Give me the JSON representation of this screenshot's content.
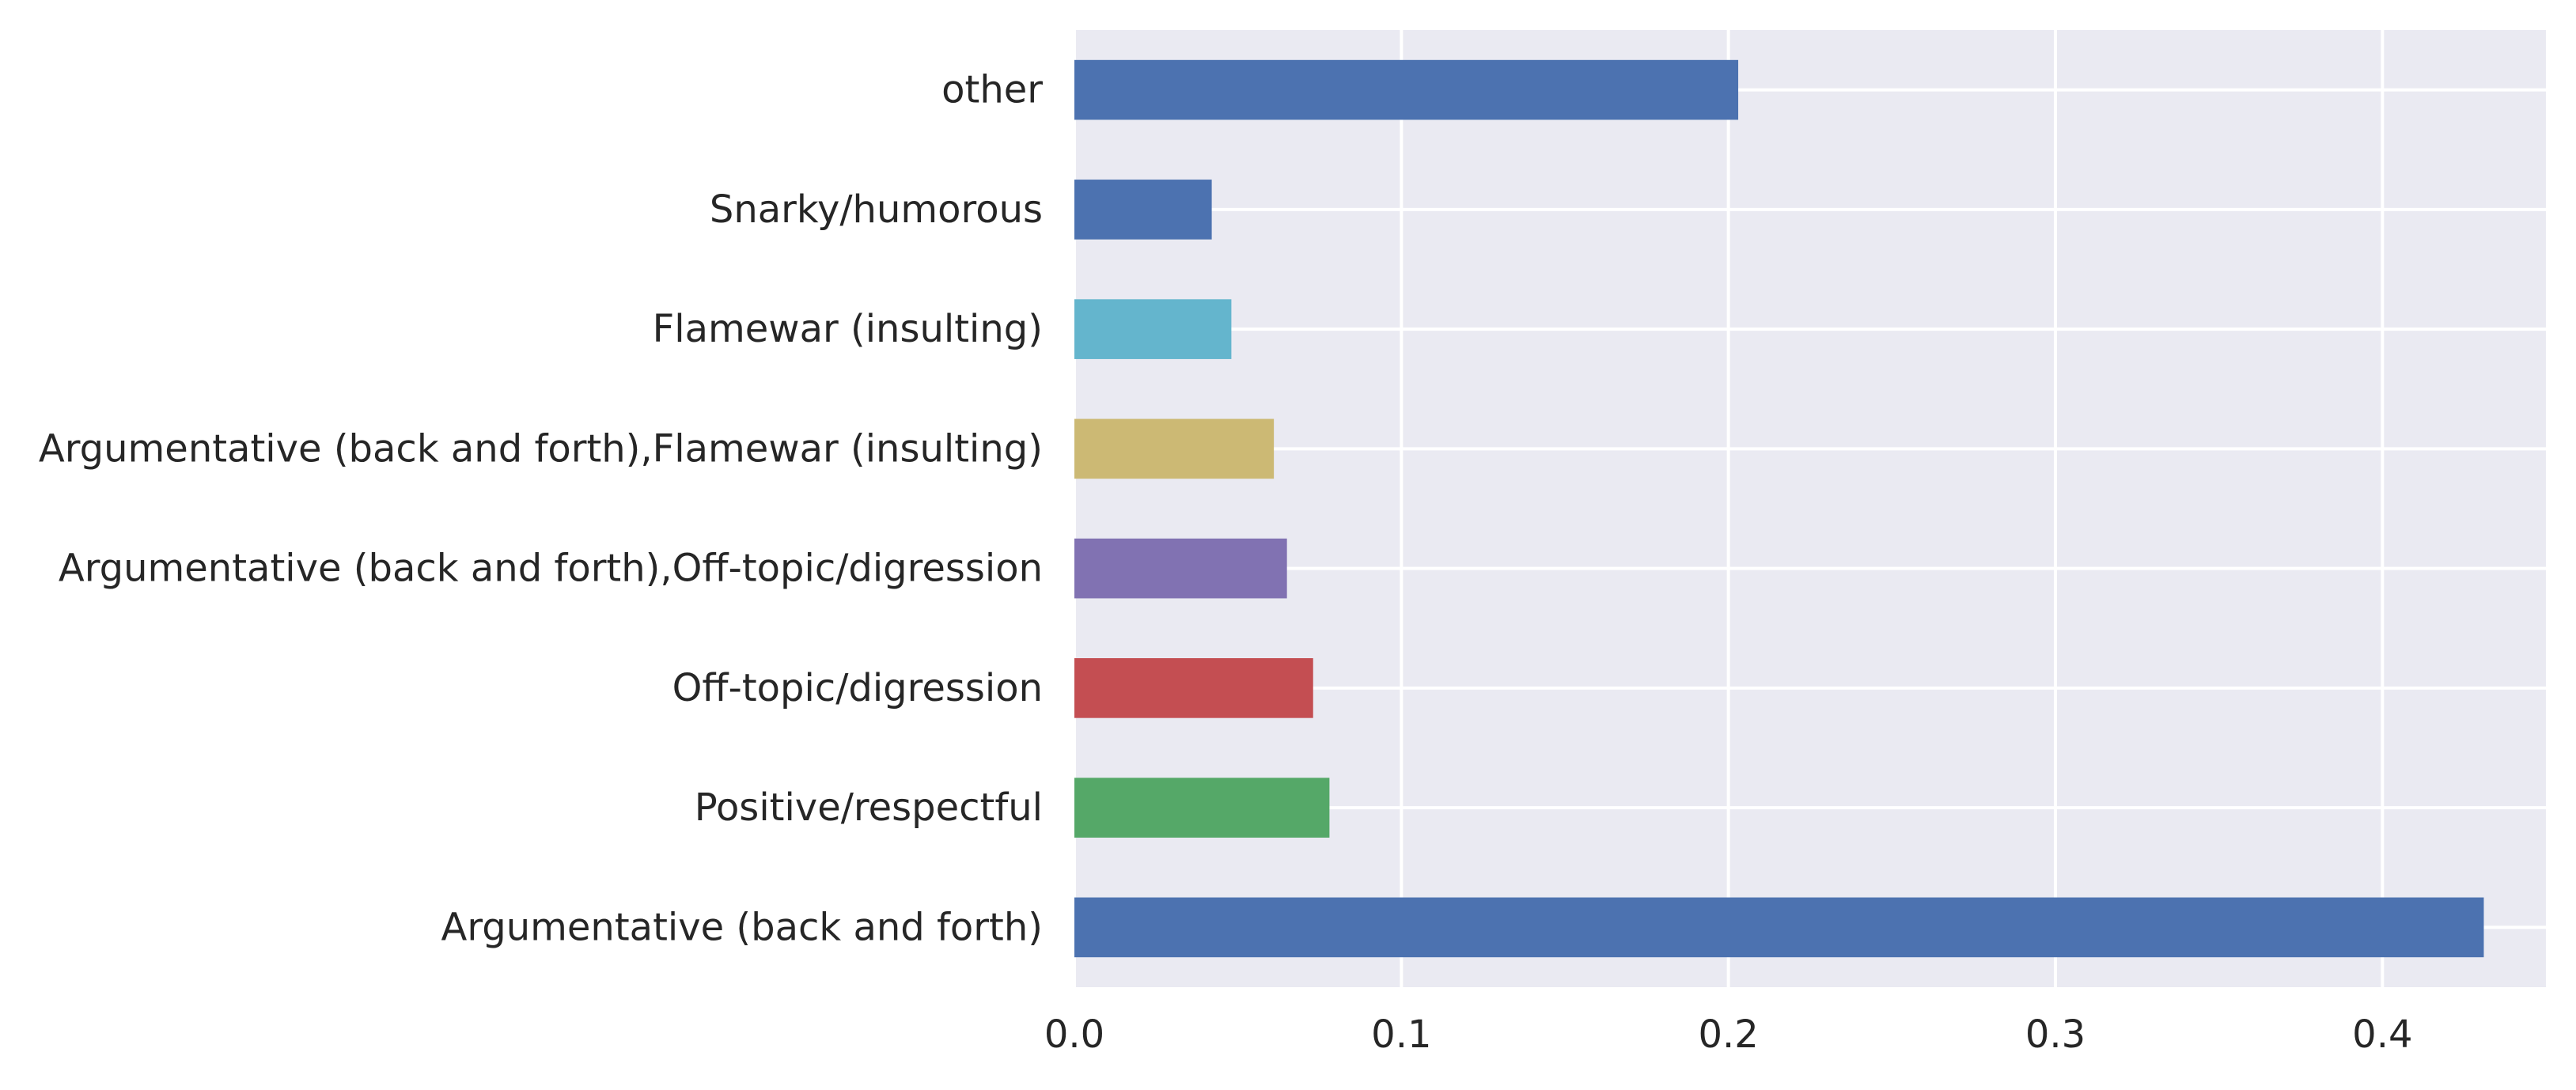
{
  "chart_data": {
    "type": "bar",
    "orientation": "horizontal",
    "title": "",
    "xlabel": "",
    "ylabel": "",
    "categories": [
      "Argumentative (back and forth)",
      "Positive/respectful",
      "Off-topic/digression",
      "Argumentative (back and forth),Off-topic/digression",
      "Argumentative (back and forth),Flamewar (insulting)",
      "Flamewar (insulting)",
      "Snarky/humorous",
      "other"
    ],
    "values": [
      0.431,
      0.078,
      0.073,
      0.065,
      0.061,
      0.048,
      0.042,
      0.203
    ],
    "colors": [
      "#4c72b0",
      "#55a868",
      "#c44e52",
      "#8172b2",
      "#ccb974",
      "#64b5cd",
      "#4c72b0",
      "#4c72b0"
    ],
    "xlim": [
      0,
      0.45
    ],
    "xticks": [
      0.0,
      0.1,
      0.2,
      0.3,
      0.4
    ],
    "xtick_labels": [
      "0.0",
      "0.1",
      "0.2",
      "0.3",
      "0.4"
    ],
    "grid": true,
    "background_color": "#eaeaf2",
    "grid_color": "#ffffff",
    "text_color": "#262626"
  }
}
